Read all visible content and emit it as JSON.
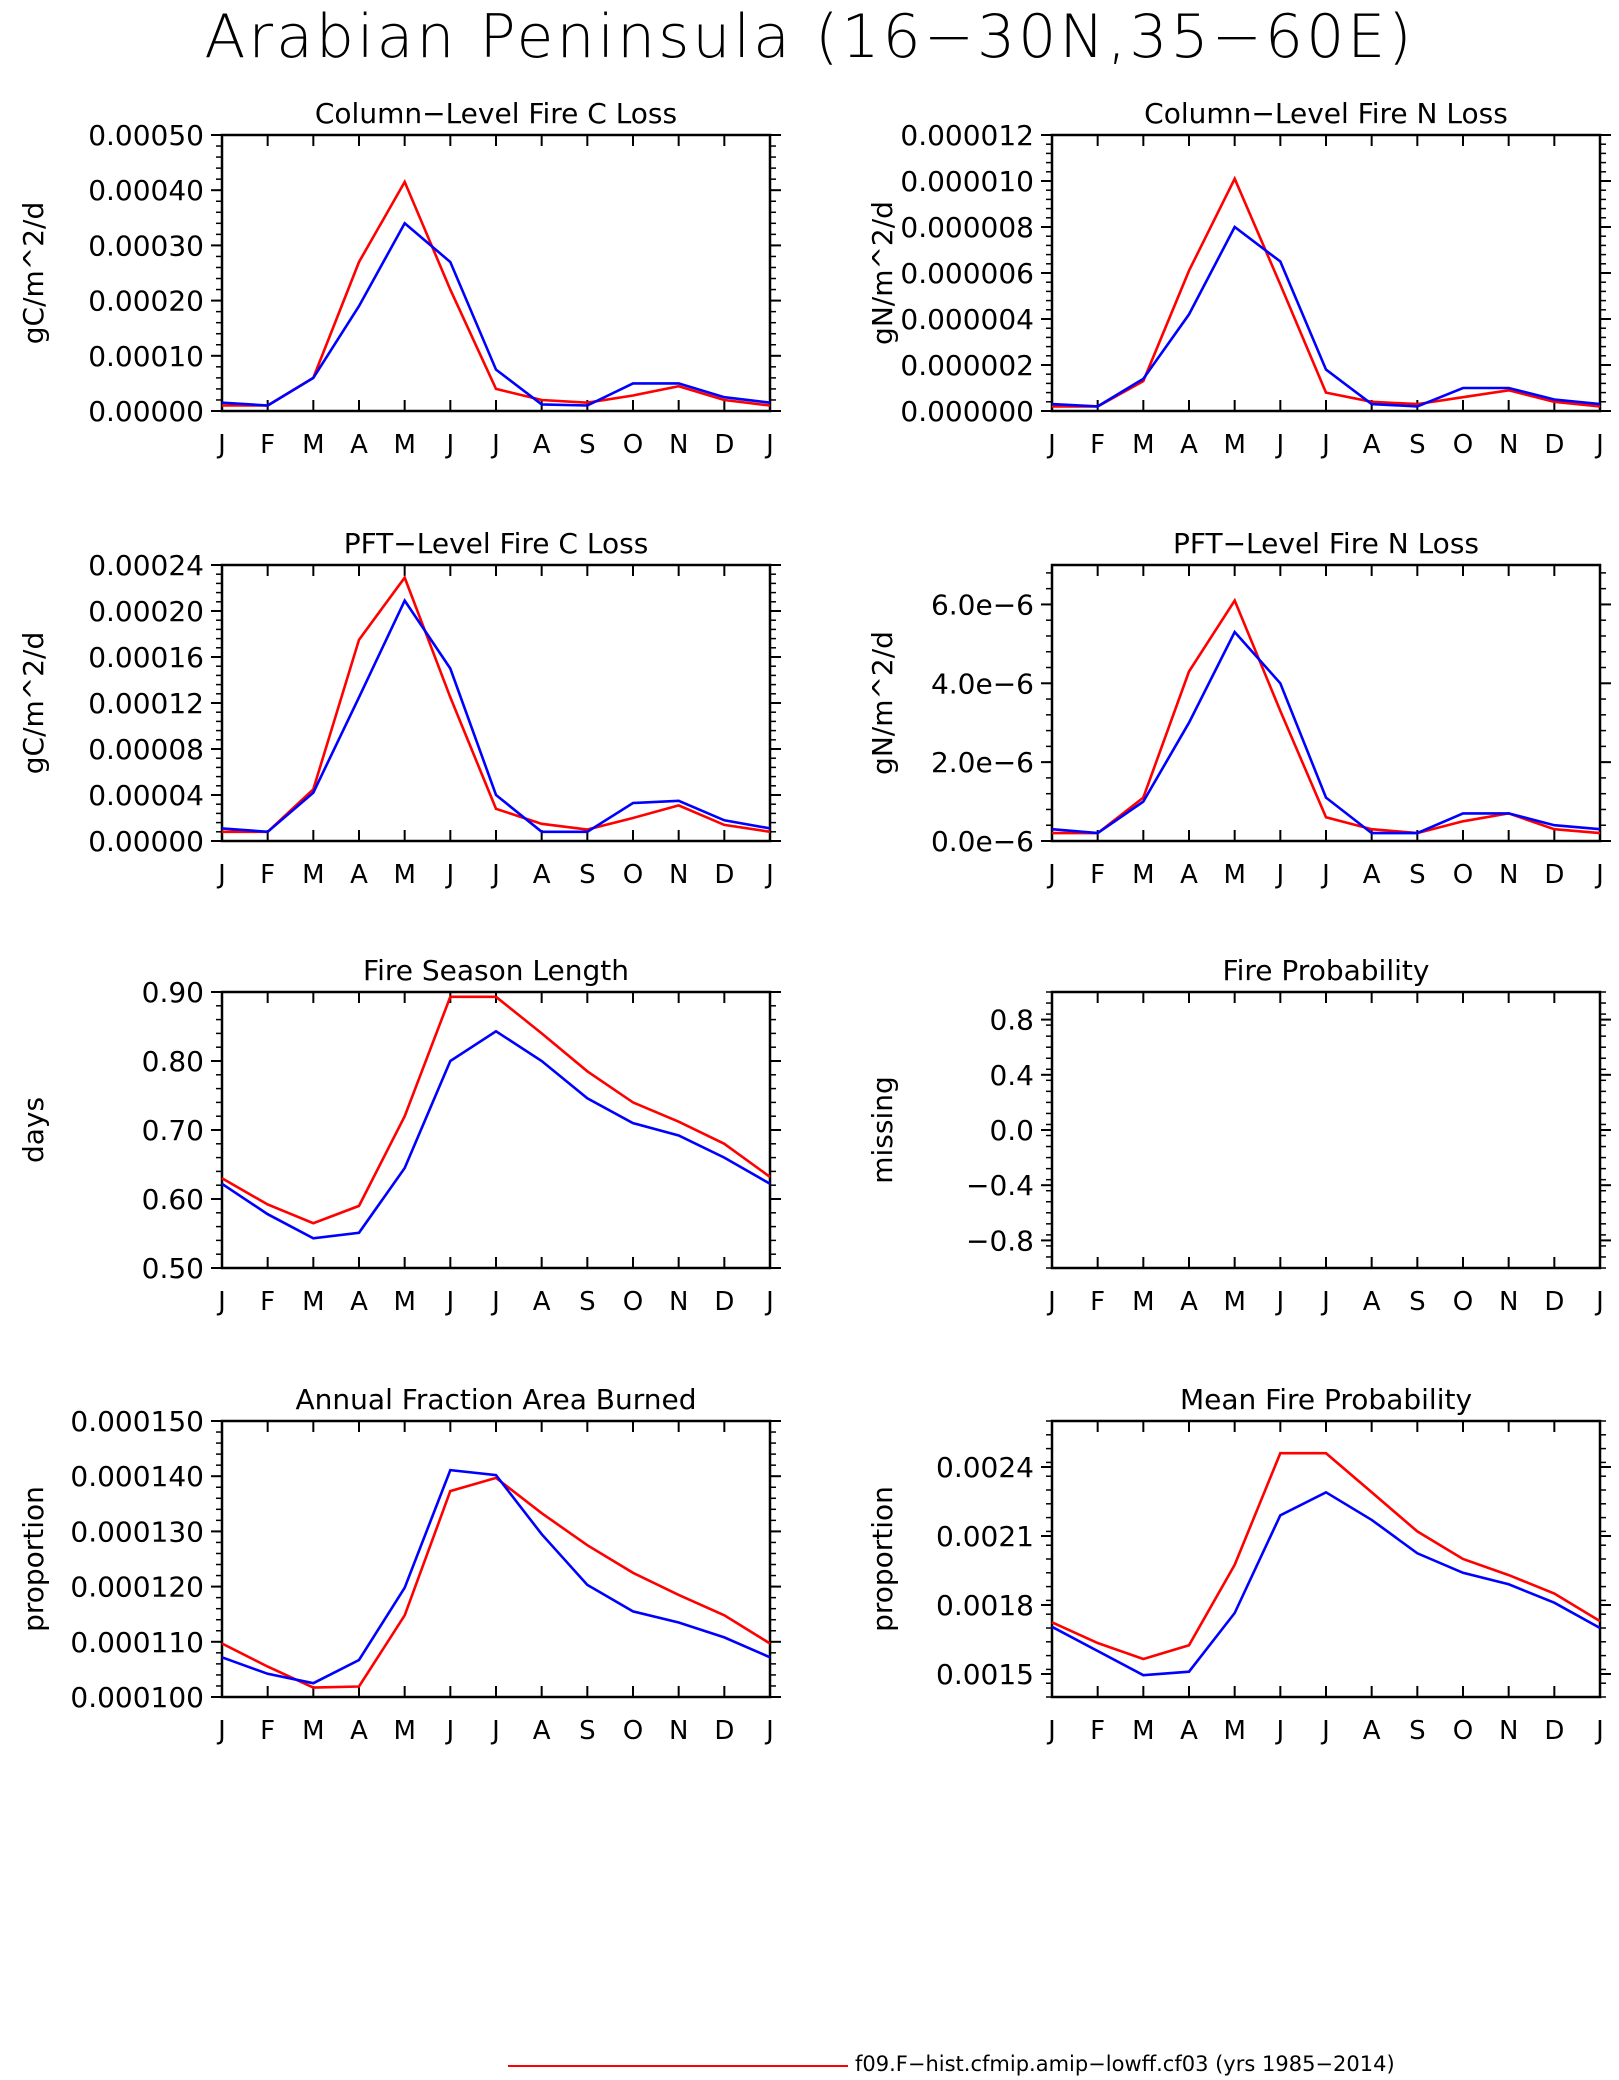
{
  "title": "Arabian Peninsula (16−30N,35−60E)",
  "legend": {
    "label": "f09.F−hist.cfmip.amip−lowff.cf03 (yrs 1985−2014)",
    "color": "#ff0000"
  },
  "colors": {
    "red": "#ff0000",
    "blue": "#0000ff"
  },
  "chart_data": [
    {
      "type": "line",
      "title": "Column−Level Fire C Loss",
      "ylabel": "gC/m^2/d",
      "x": [
        "J",
        "F",
        "M",
        "A",
        "M",
        "J",
        "J",
        "A",
        "S",
        "O",
        "N",
        "D",
        "J"
      ],
      "ylim": [
        0,
        0.0005
      ],
      "yticks": [
        "0.00000",
        "0.00010",
        "0.00020",
        "0.00030",
        "0.00040",
        "0.00050"
      ],
      "series": [
        {
          "color": "#ff0000",
          "values": [
            1e-05,
            1e-05,
            6e-05,
            0.00027,
            0.000415,
            0.00022,
            4e-05,
            2e-05,
            1.5e-05,
            2.8e-05,
            4.5e-05,
            2e-05,
            1e-05
          ]
        },
        {
          "color": "#0000ff",
          "values": [
            1.5e-05,
            1e-05,
            6e-05,
            0.00019,
            0.00034,
            0.00027,
            7.5e-05,
            1.2e-05,
            1e-05,
            5e-05,
            5e-05,
            2.5e-05,
            1.5e-05
          ]
        }
      ]
    },
    {
      "type": "line",
      "title": "Column−Level Fire N Loss",
      "ylabel": "gN/m^2/d",
      "x": [
        "J",
        "F",
        "M",
        "A",
        "M",
        "J",
        "J",
        "A",
        "S",
        "O",
        "N",
        "D",
        "J"
      ],
      "ylim": [
        0,
        1.2e-05
      ],
      "yticks": [
        "0.000000",
        "0.000002",
        "0.000004",
        "0.000006",
        "0.000008",
        "0.000010",
        "0.000012"
      ],
      "series": [
        {
          "color": "#ff0000",
          "values": [
            2e-07,
            2e-07,
            1.3e-06,
            6.1e-06,
            1.01e-05,
            5.5e-06,
            8e-07,
            4e-07,
            3e-07,
            6e-07,
            9e-07,
            4e-07,
            2e-07
          ]
        },
        {
          "color": "#0000ff",
          "values": [
            3e-07,
            2e-07,
            1.4e-06,
            4.2e-06,
            8e-06,
            6.5e-06,
            1.8e-06,
            3e-07,
            2e-07,
            1e-06,
            1e-06,
            5e-07,
            3e-07
          ]
        }
      ]
    },
    {
      "type": "line",
      "title": "PFT−Level Fire C Loss",
      "ylabel": "gC/m^2/d",
      "x": [
        "J",
        "F",
        "M",
        "A",
        "M",
        "J",
        "J",
        "A",
        "S",
        "O",
        "N",
        "D",
        "J"
      ],
      "ylim": [
        0,
        0.00024
      ],
      "yticks": [
        "0.00000",
        "0.00004",
        "0.00008",
        "0.00012",
        "0.00016",
        "0.00020",
        "0.00024"
      ],
      "series": [
        {
          "color": "#ff0000",
          "values": [
            8e-06,
            8e-06,
            4.5e-05,
            0.000175,
            0.000229,
            0.000125,
            2.8e-05,
            1.5e-05,
            1e-05,
            2e-05,
            3.1e-05,
            1.4e-05,
            8e-06
          ]
        },
        {
          "color": "#0000ff",
          "values": [
            1.1e-05,
            8e-06,
            4.2e-05,
            0.000125,
            0.000209,
            0.00015,
            4e-05,
            8e-06,
            8e-06,
            3.3e-05,
            3.5e-05,
            1.8e-05,
            1.1e-05
          ]
        }
      ]
    },
    {
      "type": "line",
      "title": "PFT−Level Fire N Loss",
      "ylabel": "gN/m^2/d",
      "x": [
        "J",
        "F",
        "M",
        "A",
        "M",
        "J",
        "J",
        "A",
        "S",
        "O",
        "N",
        "D",
        "J"
      ],
      "ylim": [
        0,
        7e-06
      ],
      "yticks": [
        "0.0e−6",
        "2.0e−6",
        "4.0e−6",
        "6.0e−6"
      ],
      "ytick_values": [
        0,
        2e-06,
        4e-06,
        6e-06
      ],
      "series": [
        {
          "color": "#ff0000",
          "values": [
            2e-07,
            2e-07,
            1.1e-06,
            4.3e-06,
            6.1e-06,
            3.3e-06,
            6e-07,
            3e-07,
            2e-07,
            5e-07,
            7e-07,
            3e-07,
            2e-07
          ]
        },
        {
          "color": "#0000ff",
          "values": [
            3e-07,
            2e-07,
            1e-06,
            3e-06,
            5.3e-06,
            4e-06,
            1.1e-06,
            2e-07,
            2e-07,
            7e-07,
            7e-07,
            4e-07,
            3e-07
          ]
        }
      ]
    },
    {
      "type": "line",
      "title": "Fire Season Length",
      "ylabel": "days",
      "x": [
        "J",
        "F",
        "M",
        "A",
        "M",
        "J",
        "J",
        "A",
        "S",
        "O",
        "N",
        "D",
        "J"
      ],
      "ylim": [
        0.5,
        0.9
      ],
      "yticks": [
        "0.50",
        "0.60",
        "0.70",
        "0.80",
        "0.90"
      ],
      "series": [
        {
          "color": "#ff0000",
          "values": [
            0.63,
            0.592,
            0.565,
            0.59,
            0.72,
            0.893,
            0.893,
            0.84,
            0.785,
            0.74,
            0.712,
            0.68,
            0.632
          ]
        },
        {
          "color": "#0000ff",
          "values": [
            0.622,
            0.578,
            0.543,
            0.551,
            0.645,
            0.8,
            0.843,
            0.8,
            0.746,
            0.71,
            0.692,
            0.66,
            0.622
          ]
        }
      ]
    },
    {
      "type": "line",
      "title": "Fire Probability",
      "ylabel": "missing",
      "x": [
        "J",
        "F",
        "M",
        "A",
        "M",
        "J",
        "J",
        "A",
        "S",
        "O",
        "N",
        "D",
        "J"
      ],
      "ylim": [
        -1,
        1
      ],
      "yticks": [
        "−0.8",
        "−0.4",
        "0.0",
        "0.4",
        "0.8"
      ],
      "ytick_values": [
        -0.8,
        -0.4,
        0,
        0.4,
        0.8
      ],
      "series": []
    },
    {
      "type": "line",
      "title": "Annual Fraction Area Burned",
      "ylabel": "proportion",
      "x": [
        "J",
        "F",
        "M",
        "A",
        "M",
        "J",
        "J",
        "A",
        "S",
        "O",
        "N",
        "D",
        "J"
      ],
      "ylim": [
        0.0001,
        0.00015
      ],
      "yticks": [
        "0.000100",
        "0.000110",
        "0.000120",
        "0.000130",
        "0.000140",
        "0.000150"
      ],
      "series": [
        {
          "color": "#ff0000",
          "values": [
            0.0001097,
            0.0001055,
            0.0001017,
            0.0001019,
            0.0001148,
            0.0001373,
            0.0001397,
            0.0001333,
            0.0001275,
            0.0001225,
            0.0001185,
            0.0001148,
            0.0001097
          ]
        },
        {
          "color": "#0000ff",
          "values": [
            0.0001072,
            0.0001042,
            0.0001025,
            0.0001067,
            0.0001198,
            0.0001411,
            0.0001402,
            0.0001295,
            0.0001203,
            0.0001155,
            0.0001135,
            0.0001108,
            0.0001072
          ]
        }
      ]
    },
    {
      "type": "line",
      "title": "Mean Fire Probability",
      "ylabel": "proportion",
      "x": [
        "J",
        "F",
        "M",
        "A",
        "M",
        "J",
        "J",
        "A",
        "S",
        "O",
        "N",
        "D",
        "J"
      ],
      "ylim": [
        0.0014,
        0.0026
      ],
      "yticks": [
        "0.0015",
        "0.0018",
        "0.0021",
        "0.0024"
      ],
      "ytick_values": [
        0.0015,
        0.0018,
        0.0021,
        0.0024
      ],
      "series": [
        {
          "color": "#ff0000",
          "values": [
            0.001725,
            0.001635,
            0.001565,
            0.001625,
            0.001975,
            0.00246,
            0.00246,
            0.00229,
            0.00212,
            0.002,
            0.00193,
            0.00185,
            0.00173
          ]
        },
        {
          "color": "#0000ff",
          "values": [
            0.001705,
            0.0016,
            0.001495,
            0.00151,
            0.001765,
            0.00219,
            0.00229,
            0.00217,
            0.002025,
            0.00194,
            0.00189,
            0.00181,
            0.0017
          ]
        }
      ]
    }
  ]
}
